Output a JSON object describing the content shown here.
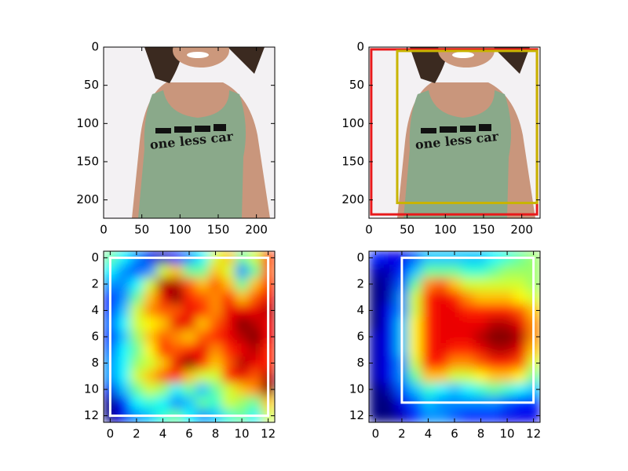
{
  "chart_data": [
    {
      "type": "image",
      "image_text": "one less car",
      "xlim": [
        0,
        224
      ],
      "ylim": [
        224,
        0
      ],
      "xticks": [
        0,
        50,
        100,
        150,
        200
      ],
      "yticks": [
        0,
        50,
        100,
        150,
        200
      ],
      "boxes": []
    },
    {
      "type": "image",
      "image_text": "one less car",
      "xlim": [
        0,
        224
      ],
      "ylim": [
        224,
        0
      ],
      "xticks": [
        0,
        50,
        100,
        150,
        200
      ],
      "yticks": [
        0,
        50,
        100,
        150,
        200
      ],
      "boxes": [
        {
          "color": "#e8191b",
          "x0": 3,
          "y0": 3,
          "x1": 220,
          "y1": 219
        },
        {
          "color": "#c8b400",
          "x0": 37,
          "y0": 5,
          "x1": 220,
          "y1": 204
        }
      ]
    },
    {
      "type": "heatmap",
      "colormap": "jet",
      "xlim": [
        -0.5,
        12.5
      ],
      "ylim": [
        12.5,
        -0.5
      ],
      "xticks": [
        0,
        2,
        4,
        6,
        8,
        10,
        12
      ],
      "yticks": [
        0,
        2,
        4,
        6,
        8,
        10,
        12
      ],
      "matrix": [
        [
          0.5,
          0.4,
          0.3,
          0.15,
          0.1,
          0.2,
          0.3,
          0.4,
          0.6,
          0.7,
          0.5,
          0.6,
          0.85
        ],
        [
          0.4,
          0.3,
          0.25,
          0.3,
          0.6,
          0.7,
          0.5,
          0.5,
          0.7,
          0.6,
          0.3,
          0.5,
          0.8
        ],
        [
          0.3,
          0.3,
          0.4,
          0.6,
          0.95,
          0.95,
          0.8,
          0.7,
          0.8,
          0.7,
          0.5,
          0.7,
          0.85
        ],
        [
          0.2,
          0.3,
          0.5,
          0.7,
          0.9,
          1.0,
          0.85,
          0.8,
          0.75,
          0.85,
          0.7,
          0.8,
          0.9
        ],
        [
          0.2,
          0.35,
          0.6,
          0.75,
          0.8,
          0.8,
          0.9,
          0.85,
          0.75,
          0.9,
          0.9,
          0.9,
          0.95
        ],
        [
          0.25,
          0.4,
          0.6,
          0.65,
          0.7,
          0.9,
          0.9,
          0.7,
          0.8,
          0.9,
          1.0,
          0.95,
          0.9
        ],
        [
          0.2,
          0.35,
          0.55,
          0.7,
          0.8,
          0.75,
          0.7,
          0.8,
          0.85,
          0.9,
          0.95,
          1.0,
          0.9
        ],
        [
          0.25,
          0.4,
          0.5,
          0.65,
          0.85,
          0.8,
          0.85,
          0.9,
          0.75,
          0.85,
          0.9,
          0.95,
          0.85
        ],
        [
          0.3,
          0.4,
          0.55,
          0.6,
          0.7,
          0.9,
          1.0,
          0.85,
          0.7,
          0.8,
          0.95,
          0.9,
          0.85
        ],
        [
          0.3,
          0.4,
          0.6,
          0.7,
          0.8,
          0.85,
          0.7,
          0.6,
          0.6,
          0.85,
          0.9,
          0.8,
          0.95
        ],
        [
          0.15,
          0.35,
          0.5,
          0.6,
          0.55,
          0.4,
          0.5,
          0.35,
          0.5,
          0.6,
          0.7,
          0.75,
          1.0
        ],
        [
          0.05,
          0.2,
          0.4,
          0.45,
          0.4,
          0.3,
          0.35,
          0.5,
          0.45,
          0.6,
          0.55,
          0.5,
          0.7
        ],
        [
          0.05,
          0.15,
          0.3,
          0.35,
          0.45,
          0.5,
          0.4,
          0.3,
          0.35,
          0.45,
          0.5,
          0.4,
          0.6
        ]
      ],
      "boxes": [
        {
          "color": "#ffffff",
          "x0": 0,
          "y0": 0,
          "x1": 12,
          "y1": 12
        }
      ]
    },
    {
      "type": "heatmap",
      "colormap": "jet",
      "xlim": [
        -0.5,
        12.5
      ],
      "ylim": [
        12.5,
        -0.5
      ],
      "xticks": [
        0,
        2,
        4,
        6,
        8,
        10,
        12
      ],
      "yticks": [
        0,
        2,
        4,
        6,
        8,
        10,
        12
      ],
      "matrix": [
        [
          0.2,
          0.15,
          0.15,
          0.25,
          0.35,
          0.35,
          0.35,
          0.35,
          0.35,
          0.4,
          0.45,
          0.5,
          0.55
        ],
        [
          0.1,
          0.1,
          0.2,
          0.35,
          0.5,
          0.5,
          0.5,
          0.45,
          0.45,
          0.5,
          0.55,
          0.55,
          0.55
        ],
        [
          0.05,
          0.1,
          0.25,
          0.5,
          0.75,
          0.8,
          0.7,
          0.6,
          0.6,
          0.6,
          0.6,
          0.6,
          0.55
        ],
        [
          0.05,
          0.1,
          0.3,
          0.6,
          0.85,
          0.9,
          0.85,
          0.75,
          0.7,
          0.7,
          0.7,
          0.65,
          0.6
        ],
        [
          0.05,
          0.15,
          0.3,
          0.6,
          0.85,
          0.9,
          0.9,
          0.85,
          0.85,
          0.85,
          0.85,
          0.8,
          0.7
        ],
        [
          0.05,
          0.15,
          0.35,
          0.65,
          0.85,
          0.9,
          0.9,
          0.9,
          0.9,
          0.95,
          0.95,
          0.9,
          0.75
        ],
        [
          0.1,
          0.15,
          0.35,
          0.65,
          0.85,
          0.9,
          0.9,
          0.9,
          0.95,
          1.0,
          1.0,
          0.95,
          0.75
        ],
        [
          0.1,
          0.15,
          0.35,
          0.65,
          0.85,
          0.9,
          0.85,
          0.85,
          0.9,
          0.95,
          0.95,
          0.9,
          0.7
        ],
        [
          0.1,
          0.15,
          0.3,
          0.6,
          0.85,
          0.85,
          0.75,
          0.75,
          0.8,
          0.85,
          0.85,
          0.8,
          0.6
        ],
        [
          0.1,
          0.15,
          0.3,
          0.5,
          0.7,
          0.7,
          0.6,
          0.6,
          0.65,
          0.7,
          0.7,
          0.65,
          0.5
        ],
        [
          0.05,
          0.1,
          0.25,
          0.35,
          0.45,
          0.4,
          0.35,
          0.4,
          0.45,
          0.5,
          0.45,
          0.4,
          0.35
        ],
        [
          0.05,
          0.05,
          0.15,
          0.25,
          0.35,
          0.3,
          0.3,
          0.3,
          0.3,
          0.3,
          0.25,
          0.2,
          0.2
        ],
        [
          0.05,
          0.05,
          0.1,
          0.2,
          0.3,
          0.3,
          0.25,
          0.2,
          0.2,
          0.2,
          0.15,
          0.15,
          0.15
        ]
      ],
      "boxes": [
        {
          "color": "#ffffff",
          "x0": 2,
          "y0": 0,
          "x1": 12,
          "y1": 11
        }
      ]
    }
  ]
}
